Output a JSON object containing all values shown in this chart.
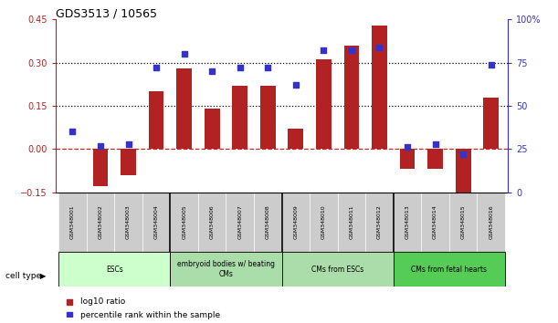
{
  "title": "GDS3513 / 10565",
  "samples": [
    "GSM348001",
    "GSM348002",
    "GSM348003",
    "GSM348004",
    "GSM348005",
    "GSM348006",
    "GSM348007",
    "GSM348008",
    "GSM348009",
    "GSM348010",
    "GSM348011",
    "GSM348012",
    "GSM348013",
    "GSM348014",
    "GSM348015",
    "GSM348016"
  ],
  "log10_ratio": [
    0.0,
    -0.13,
    -0.09,
    0.2,
    0.28,
    0.14,
    0.22,
    0.22,
    0.07,
    0.31,
    0.36,
    0.43,
    -0.07,
    -0.07,
    -0.22,
    0.18
  ],
  "percentile_rank": [
    35,
    27,
    28,
    72,
    80,
    70,
    72,
    72,
    62,
    82,
    82,
    84,
    26,
    28,
    22,
    74
  ],
  "ylim_left": [
    -0.15,
    0.45
  ],
  "ylim_right": [
    0,
    100
  ],
  "yticks_left": [
    -0.15,
    0.0,
    0.15,
    0.3,
    0.45
  ],
  "yticks_right": [
    0,
    25,
    50,
    75,
    100
  ],
  "hlines": [
    0.15,
    0.3
  ],
  "bar_color": "#b22222",
  "dot_color": "#3333cc",
  "zero_line_color": "#cc2222",
  "cell_groups": [
    {
      "label": "ESCs",
      "start": 0,
      "end": 3,
      "color": "#ccffcc"
    },
    {
      "label": "embryoid bodies w/ beating\nCMs",
      "start": 4,
      "end": 7,
      "color": "#aaddaa"
    },
    {
      "label": "CMs from ESCs",
      "start": 8,
      "end": 11,
      "color": "#aaddaa"
    },
    {
      "label": "CMs from fetal hearts",
      "start": 12,
      "end": 15,
      "color": "#55cc55"
    }
  ],
  "group_boundaries": [
    3.5,
    7.5,
    11.5
  ],
  "legend_bar_label": "log10 ratio",
  "legend_dot_label": "percentile rank within the sample",
  "cell_type_label": "cell type"
}
